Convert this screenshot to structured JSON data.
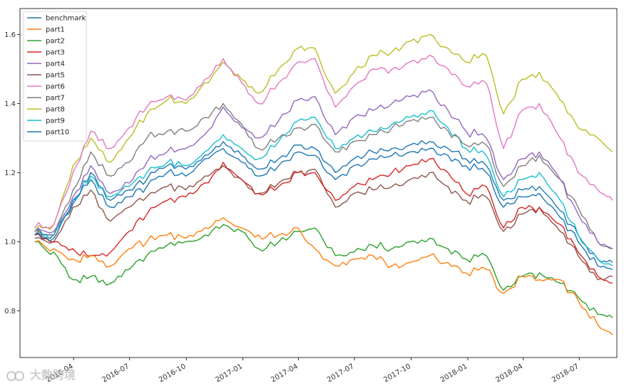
{
  "watermark": "大数跨境",
  "chart_data": {
    "type": "line",
    "title": "",
    "xlabel": "",
    "ylabel": "",
    "ylim": [
      0.665,
      1.675
    ],
    "x_ticks": [
      "2016-04",
      "2016-07",
      "2016-10",
      "2017-01",
      "2017-04",
      "2017-07",
      "2017-10",
      "2018-01",
      "2018-04",
      "2018-07"
    ],
    "y_ticks": [
      "0.8",
      "1.0",
      "1.2",
      "1.4",
      "1.6"
    ],
    "y_tick_values": [
      0.8,
      1.0,
      1.2,
      1.4,
      1.6
    ],
    "legend_position": "top-left",
    "x": [
      "2016-01-29",
      "2016-02-29",
      "2016-03-31",
      "2016-04-29",
      "2016-05-31",
      "2016-06-30",
      "2016-07-29",
      "2016-08-31",
      "2016-09-30",
      "2016-10-31",
      "2016-11-30",
      "2016-12-30",
      "2017-01-26",
      "2017-02-28",
      "2017-03-31",
      "2017-04-28",
      "2017-05-31",
      "2017-06-30",
      "2017-07-31",
      "2017-08-31",
      "2017-09-29",
      "2017-10-31",
      "2017-11-30",
      "2017-12-29",
      "2018-01-31",
      "2018-02-28",
      "2018-03-30",
      "2018-04-27",
      "2018-05-31",
      "2018-06-29",
      "2018-07-31",
      "2018-08-24"
    ],
    "series": [
      {
        "name": "benchmark",
        "color": "#1f77b4",
        "values": [
          1.02,
          1.01,
          1.12,
          1.18,
          1.1,
          1.13,
          1.16,
          1.2,
          1.19,
          1.24,
          1.27,
          1.23,
          1.19,
          1.22,
          1.26,
          1.25,
          1.18,
          1.22,
          1.24,
          1.25,
          1.26,
          1.27,
          1.25,
          1.22,
          1.2,
          1.1,
          1.13,
          1.14,
          1.07,
          1.0,
          0.93,
          0.92
        ]
      },
      {
        "name": "part1",
        "color": "#ff7f0e",
        "values": [
          1.0,
          0.98,
          0.95,
          0.96,
          0.93,
          0.98,
          1.0,
          1.02,
          1.01,
          1.04,
          1.07,
          1.04,
          1.02,
          1.02,
          1.04,
          0.98,
          0.93,
          0.95,
          0.96,
          0.93,
          0.94,
          0.96,
          0.94,
          0.91,
          0.92,
          0.85,
          0.9,
          0.89,
          0.89,
          0.83,
          0.76,
          0.73
        ]
      },
      {
        "name": "part2",
        "color": "#2ca02c",
        "values": [
          1.0,
          0.97,
          0.89,
          0.9,
          0.88,
          0.92,
          0.96,
          0.99,
          1.0,
          1.02,
          1.05,
          1.03,
          0.98,
          1.0,
          1.03,
          1.04,
          0.96,
          0.97,
          0.99,
          0.98,
          1.0,
          1.01,
          0.98,
          0.95,
          0.96,
          0.86,
          0.9,
          0.91,
          0.88,
          0.84,
          0.79,
          0.78
        ]
      },
      {
        "name": "part3",
        "color": "#d62728",
        "values": [
          1.02,
          1.0,
          0.98,
          0.96,
          0.97,
          1.03,
          1.08,
          1.12,
          1.13,
          1.17,
          1.23,
          1.18,
          1.14,
          1.16,
          1.2,
          1.2,
          1.12,
          1.16,
          1.18,
          1.2,
          1.22,
          1.24,
          1.2,
          1.14,
          1.16,
          1.04,
          1.1,
          1.1,
          1.05,
          0.97,
          0.9,
          0.88
        ]
      },
      {
        "name": "part4",
        "color": "#9467bd",
        "values": [
          1.03,
          1.03,
          1.13,
          1.22,
          1.14,
          1.17,
          1.23,
          1.26,
          1.27,
          1.31,
          1.39,
          1.33,
          1.3,
          1.35,
          1.41,
          1.42,
          1.31,
          1.36,
          1.38,
          1.4,
          1.42,
          1.44,
          1.38,
          1.32,
          1.3,
          1.18,
          1.24,
          1.26,
          1.18,
          1.08,
          1.0,
          0.98
        ]
      },
      {
        "name": "part5",
        "color": "#8c564b",
        "values": [
          1.01,
          1.0,
          1.1,
          1.15,
          1.06,
          1.1,
          1.13,
          1.16,
          1.15,
          1.19,
          1.22,
          1.18,
          1.14,
          1.17,
          1.2,
          1.21,
          1.1,
          1.14,
          1.15,
          1.16,
          1.18,
          1.2,
          1.16,
          1.12,
          1.13,
          1.03,
          1.08,
          1.1,
          1.03,
          0.96,
          0.89,
          0.9
        ]
      },
      {
        "name": "part6",
        "color": "#e377c2",
        "values": [
          1.04,
          1.05,
          1.2,
          1.32,
          1.27,
          1.33,
          1.39,
          1.42,
          1.41,
          1.47,
          1.53,
          1.46,
          1.4,
          1.46,
          1.52,
          1.53,
          1.39,
          1.45,
          1.5,
          1.5,
          1.52,
          1.54,
          1.5,
          1.45,
          1.46,
          1.27,
          1.38,
          1.4,
          1.3,
          1.2,
          1.15,
          1.12
        ]
      },
      {
        "name": "part7",
        "color": "#7f7f7f",
        "values": [
          1.02,
          1.02,
          1.15,
          1.26,
          1.19,
          1.23,
          1.3,
          1.32,
          1.32,
          1.36,
          1.4,
          1.34,
          1.27,
          1.3,
          1.33,
          1.34,
          1.26,
          1.29,
          1.31,
          1.33,
          1.35,
          1.36,
          1.32,
          1.28,
          1.28,
          1.16,
          1.22,
          1.25,
          1.18,
          1.1,
          1.0,
          0.98
        ]
      },
      {
        "name": "part8",
        "color": "#bcbd22",
        "values": [
          1.03,
          1.05,
          1.22,
          1.3,
          1.23,
          1.3,
          1.37,
          1.41,
          1.4,
          1.46,
          1.52,
          1.47,
          1.43,
          1.5,
          1.56,
          1.56,
          1.43,
          1.49,
          1.54,
          1.55,
          1.58,
          1.6,
          1.56,
          1.52,
          1.54,
          1.37,
          1.47,
          1.49,
          1.41,
          1.33,
          1.3,
          1.26
        ]
      },
      {
        "name": "part9",
        "color": "#17becf",
        "values": [
          1.02,
          1.02,
          1.12,
          1.19,
          1.13,
          1.16,
          1.2,
          1.23,
          1.22,
          1.26,
          1.31,
          1.27,
          1.24,
          1.29,
          1.35,
          1.36,
          1.27,
          1.3,
          1.32,
          1.34,
          1.36,
          1.38,
          1.33,
          1.27,
          1.25,
          1.13,
          1.18,
          1.2,
          1.12,
          1.02,
          0.95,
          0.93
        ]
      },
      {
        "name": "part10",
        "color": "#1f77b4",
        "values": [
          1.03,
          1.02,
          1.11,
          1.2,
          1.12,
          1.15,
          1.18,
          1.22,
          1.21,
          1.25,
          1.29,
          1.25,
          1.21,
          1.24,
          1.28,
          1.27,
          1.2,
          1.24,
          1.26,
          1.27,
          1.28,
          1.29,
          1.27,
          1.24,
          1.22,
          1.12,
          1.15,
          1.16,
          1.09,
          1.02,
          0.95,
          0.94
        ]
      }
    ]
  }
}
